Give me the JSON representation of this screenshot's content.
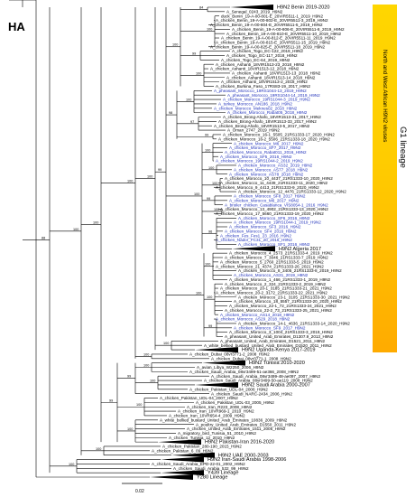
{
  "title": "HA",
  "clade_labels": {
    "g1": "G1 lineage",
    "nw_africa": "North and West African H9N2 viruses",
    "y439": "Y439 Lineage",
    "y280": "Y280 Lineage",
    "pakistan_iran": "H9N2 Pakistan-Iran 2016-2020"
  },
  "scale_bar": "0.02",
  "colors": {
    "black": "#000000",
    "blue": "#2233bb",
    "gradient_top": "#ffd600",
    "gradient_bottom": "#ffab00"
  },
  "tips": [
    {
      "label": "H9N2 Benin 2019-2020",
      "color": "#000000",
      "collapsed": true
    },
    {
      "label": "A_Senegal_0243_2019_H9N2",
      "color": "#000000"
    },
    {
      "label": "duck_Benin_19-A-00-801-E_20VIR5511-1_2019_H9N2",
      "color": "#000000"
    },
    {
      "label": "A_chicken_Benin_19-A-00-802-E_20VIR5511-3_2019_H9N2",
      "color": "#000000"
    },
    {
      "label": "A_chicken_Benin_19-A-00-804-E_20VIR5511-5_2019_H9N2",
      "color": "#000000"
    },
    {
      "label": "A_chicken_Benin_19-A-00-806-E_20VIR5511-8_2019_H9N2",
      "color": "#000000"
    },
    {
      "label": "A_chicken_Benin_19-A-00-810-E_20VIR5511-10_2019_H9N2",
      "color": "#000000"
    },
    {
      "label": "A_chicken_Benin_19-A-00-812-E_20VIR5511-11_2019_H9N2",
      "color": "#000000"
    },
    {
      "label": "A_chicken_Benin_19-A-00-815-E_20VIR5511-15_2019_H9N2",
      "color": "#000000"
    },
    {
      "label": "A_chicken_Benin_19-A-00-825-E_20VIR5511-18_2019_H9N2",
      "color": "#000000"
    },
    {
      "label": "A_chicken_Togo_EC-122_2019_H9N2",
      "color": "#000000"
    },
    {
      "label": "A_chicken_Togo_EC-117_2018_H9N2",
      "color": "#000000"
    },
    {
      "label": "A_chicken_Togo_EC-64_2019_H9N2",
      "color": "#000000"
    },
    {
      "label": "A_chicken_Ashanti_18VIR1513-23_2018_H9N2",
      "color": "#000000"
    },
    {
      "label": "A_chicken_Ashanti_18VIR1513-12_2018_H9N2",
      "color": "#000000"
    },
    {
      "label": "A_chicken_Ashanti_18VIR1513-13_2018_H9N2",
      "color": "#000000"
    },
    {
      "label": "A_chicken_Ashanti_18VIR1513-14_2018_H9N2",
      "color": "#000000"
    },
    {
      "label": "A_chicken_Ashanti_18VIR1513-2_2018_H9N2",
      "color": "#000000"
    },
    {
      "label": "A_chicken_Burkina_Faso_17RS83-19_2017_H9N2",
      "color": "#000000"
    },
    {
      "label": "A_pheasant_Morocco_19RS1044-13_2019_H9N2",
      "color": "#2233bb"
    },
    {
      "label": "A_pheasant_Morocco_19RS1044-14_2019_H9N2",
      "color": "#2233bb"
    },
    {
      "label": "A_chicken_Morocco_19RS1044-3_2019_H9N2",
      "color": "#2233bb"
    },
    {
      "label": "A_turkey_Morocco_AN186_2018_H9N2",
      "color": "#2233bb"
    },
    {
      "label": "A_chicken_Morocco_Meknes02_2018_H9N2",
      "color": "#2233bb"
    },
    {
      "label": "A_chicken_Morocco_Rabat05_2018_H9N2",
      "color": "#2233bb"
    },
    {
      "label": "A_chicken_Brong-Ahafo_18VIR1513-31_2017_H9N2",
      "color": "#000000"
    },
    {
      "label": "A_chicken_Brong-Ahafo_18VIR1513-33_2017_H9N2",
      "color": "#000000"
    },
    {
      "label": "A_chicken_Brong-Ahafo_18VIR1513-5_2017_H9N2",
      "color": "#000000"
    },
    {
      "label": "A_Oman_2747_2019_H9N2",
      "color": "#000000"
    },
    {
      "label": "A_chicken_Morocco_16-1_5505_21RS1333-17_2020_H9N2",
      "color": "#000000"
    },
    {
      "label": "A_chicken_Morocco_16-2_5506_21RS1333-18_2020_H9N2",
      "color": "#000000"
    },
    {
      "label": "A_chicken_Morocco_M6_2017_H9N2",
      "color": "#2233bb"
    },
    {
      "label": "A_chicken_Morocco_SF7_2017_H9N2",
      "color": "#2233bb"
    },
    {
      "label": "A_chicken_Morocco_Rabat011_2016_H9N2",
      "color": "#2233bb"
    },
    {
      "label": "A_chicken_Morocco_SF5_2016_H9N2",
      "color": "#2233bb"
    },
    {
      "label": "A_chicken_Morocco_19RS1044-2_2019_H9N2",
      "color": "#2233bb"
    },
    {
      "label": "A_chicken_Morocco_AS32_2019_H9N2",
      "color": "#2233bb"
    },
    {
      "label": "A_chicken_Morocco_AS77_2018_H9N2",
      "color": "#2233bb"
    },
    {
      "label": "A_chicken_Morocco_AS78_2018_H9N2",
      "color": "#2233bb"
    },
    {
      "label": "A_chicken_Morocco_10_4437_21RS1333-10_2020_H9N2",
      "color": "#000000"
    },
    {
      "label": "A_chicken_Morocco_11_4439_21RS1333-11_2020_H9N2",
      "color": "#000000"
    },
    {
      "label": "A_chicken_Morocco_9_4413_21RS1333-9_2020_H9N2",
      "color": "#000000"
    },
    {
      "label": "A_chicken_Morocco_12_4476_21RS1333-12_2020_H9N2",
      "color": "#000000"
    },
    {
      "label": "A_chicken_Morocco_SF8_2017_H9N2",
      "color": "#2233bb"
    },
    {
      "label": "A_chicken_Morocco_M6_2017_H9N2",
      "color": "#2233bb"
    },
    {
      "label": "A_broiler_chicken_Casablanca_VIS8054-1_2016_H9N2",
      "color": "#2233bb"
    },
    {
      "label": "A_chicken_Morocco_13_4902_21RS1333-13_2020_H9N2",
      "color": "#000000"
    },
    {
      "label": "A_chicken_Morocco_17_5660_21RS1333-19_2020_H9N2",
      "color": "#000000"
    },
    {
      "label": "A_chicken_Morocco_SF6_2016_H9N2",
      "color": "#2233bb"
    },
    {
      "label": "A_chicken_Morocco_19RS1044-1_2019_H9N2",
      "color": "#2233bb"
    },
    {
      "label": "A_chicken_Morocco_SF3_2016_H9N2",
      "color": "#2233bb"
    },
    {
      "label": "A_chicken_Morocco_SF4_2016_H9N2",
      "color": "#2233bb"
    },
    {
      "label": "A_chicken_Fes_Fes1_23_2016_H9N2",
      "color": "#2233bb"
    },
    {
      "label": "A_chicken_Nador_FC31_20_2016_H9N2",
      "color": "#2233bb"
    },
    {
      "label": "A_chicken_Morocco_SF1_2016_H9N2",
      "color": "#2233bb"
    },
    {
      "label": "H9N2 Algeria 2017",
      "color": "#000000",
      "collapsed": true
    },
    {
      "label": "A_chicken_Morocco_4_2573_21RS1333-4_2019_H9N2",
      "color": "#000000"
    },
    {
      "label": "A_chicken_Morocco_7_3046_21RS1333-7_2019_H9N2",
      "color": "#000000"
    },
    {
      "label": "A_chicken_Morocco_5_2760_21RS1333-5_2019_H9N2",
      "color": "#000000"
    },
    {
      "label": "A_chicken_Morocco_21_4374_21RS1333-26_2021_H9N2",
      "color": "#000000"
    },
    {
      "label": "A_chicken_Morocco_8_3405_21RS1333-8_2019_H9N2",
      "color": "#000000"
    },
    {
      "label": "A_chicken_Morocco_AS31_2019_H9N2",
      "color": "#2233bb"
    },
    {
      "label": "A_chicken_Morocco_1_466_21RS1333-1_2019_H9N2",
      "color": "#000000"
    },
    {
      "label": "A_chicken_Morocco_2_324_21RS1333-2_2019_H9N2",
      "color": "#000000"
    },
    {
      "label": "A_chicken_Morocco_20-1_3185_21RS1333-21_2021_H9N2",
      "color": "#000000"
    },
    {
      "label": "A_chicken_Morocco_20-2_3172_21RS1333-22_2021_H9N2",
      "color": "#000000"
    },
    {
      "label": "A_chicken_Morocco_23-1_3105_21RS1333-30_2021_H9N2",
      "color": "#000000"
    },
    {
      "label": "A_chicken_Morocco_18_5557_21RS1333-20_2020_H9N2",
      "color": "#000000"
    },
    {
      "label": "A_chicken_Morocco_22-1_72_21RS1333-24_2021_H9N2",
      "color": "#000000"
    },
    {
      "label": "A_chicken_Morocco_22-2_73_21RS1333-25_2021_H9N2",
      "color": "#000000"
    },
    {
      "label": "A_chicken_Morocco_AS14_2018_H9N2",
      "color": "#2233bb"
    },
    {
      "label": "A_chicken_Morocco_AS29_2018_H9N2",
      "color": "#2233bb"
    },
    {
      "label": "A_chicken_Morocco_14-1_4636_21RS1333-14_2020_H9N2",
      "color": "#000000"
    },
    {
      "label": "A_chicken_Morocco_SF9_2017_H9N2",
      "color": "#2233bb"
    },
    {
      "label": "A_chicken_Morocco_3_1004_21RS1333-3_2019_H9N2",
      "color": "#000000"
    },
    {
      "label": "A_pheasant_United_Arab_Emirates_D1307.9_2013_H9N2",
      "color": "#000000"
    },
    {
      "label": "A_pheasant_United_Arab_Emirates_D1521_2011_H9N2",
      "color": "#000000"
    },
    {
      "label": "A_white_bellied_bustard_United_Arab_Emirates_D1520_2011_H9N2",
      "color": "#000000"
    },
    {
      "label": "H9N2 Uganda-Kenya 2017-2019",
      "color": "#000000",
      "collapsed": true
    },
    {
      "label": "A_chicken_Dubai_08vr3771-2_2008_H9N2",
      "color": "#000000"
    },
    {
      "label": "A_chicken_Dubai_08vr3771-1_2008_H9N2",
      "color": "#000000"
    },
    {
      "label": "H9N2 Tunisia 2010-2020",
      "color": "#000000",
      "collapsed": true
    },
    {
      "label": "A_avian_Libya_W2250_2006_H9N2",
      "color": "#000000"
    },
    {
      "label": "A_chicken_Saudi_Arabia_08vr3499-51-ae366_2008_H9N2",
      "color": "#000000"
    },
    {
      "label": "A_chicken_Saudi_Arabia_08vr3499-48-ae097_2007_H9N2",
      "color": "#000000"
    },
    {
      "label": "A_chicken_Saudi_Arabia_08vr3499-50-ae119_2008_H9N2",
      "color": "#000000"
    },
    {
      "label": "H9N2 Saudi Arabia 2000-2007",
      "color": "#000000",
      "collapsed": true
    },
    {
      "label": "A_chicken_Pakistan_UDL-04_2006_H9N2",
      "color": "#000000"
    },
    {
      "label": "A_chicken_Saudi_NARC-2434_2006_H9N2",
      "color": "#000000"
    },
    {
      "label": "A_chicken_Pakistan_UDL-04_2007_H9N2",
      "color": "#000000"
    },
    {
      "label": "A_chicken_Pakistan_UDL-03_2005_H9N2",
      "color": "#000000"
    },
    {
      "label": "A_chicken_Iran_R223_2008_H9N2",
      "color": "#000000"
    },
    {
      "label": "A_chicken_Iran_10VR969-1_2010_H9N2",
      "color": "#000000"
    },
    {
      "label": "A_chicken_Iran_10VR654-4_2009_H9N2",
      "color": "#000000"
    },
    {
      "label": "A_white_bellied_bustard_United_Arab_Emirates_10836_2009_H9N2",
      "color": "#000000"
    },
    {
      "label": "A_poultry_United_Arab_Emirates_D1550_2011_H9N2",
      "color": "#000000"
    },
    {
      "label": "A_chicken_United_Arab_Emirates_1511_2005_H9N2",
      "color": "#000000"
    },
    {
      "label": "A_migratory_bird_Tunisia_51_2010_H9N2",
      "color": "#000000"
    },
    {
      "label": "A_chicken_Tunisia_12_2010_H9N2",
      "color": "#000000"
    },
    {
      "label": "H9N2 Pakistan-Iran 2016-2020",
      "color": "#000000",
      "collapsed": true
    },
    {
      "label": "A_chicken_Pakistan_280-190_2015_H9N2",
      "color": "#000000"
    },
    {
      "label": "A_chicken_Pakistan_6_09_H9N2",
      "color": "#000000"
    },
    {
      "label": "H9N2 UAE 2000-2003",
      "color": "#000000",
      "collapsed": true
    },
    {
      "label": "H9N2 Iran-Saudi Arabia 1998-2006",
      "color": "#000000",
      "collapsed": true
    },
    {
      "label": "A_chicken_Saudi_Arabia_EPD-22-01_2002_H9N2",
      "color": "#000000"
    },
    {
      "label": "A_chicken_Saudi_Arabia_532_99_H9N2",
      "color": "#000000"
    },
    {
      "label": "Y439 Lineage",
      "color": "#000000",
      "collapsed": true
    },
    {
      "label": "Y280 Lineage",
      "color": "#000000",
      "collapsed": true
    }
  ],
  "bootstrap_values": [
    "84",
    "100",
    "99",
    "100",
    "100",
    "100",
    "97",
    "99",
    "98",
    "100",
    "100",
    "100",
    "99",
    "100",
    "96",
    "100",
    "100",
    "100",
    "99",
    "100",
    "99",
    "100",
    "100",
    "100",
    "100",
    "100",
    "100",
    "99",
    "100",
    "100",
    "99",
    "100",
    "100",
    "100",
    "100",
    "88",
    "100"
  ]
}
